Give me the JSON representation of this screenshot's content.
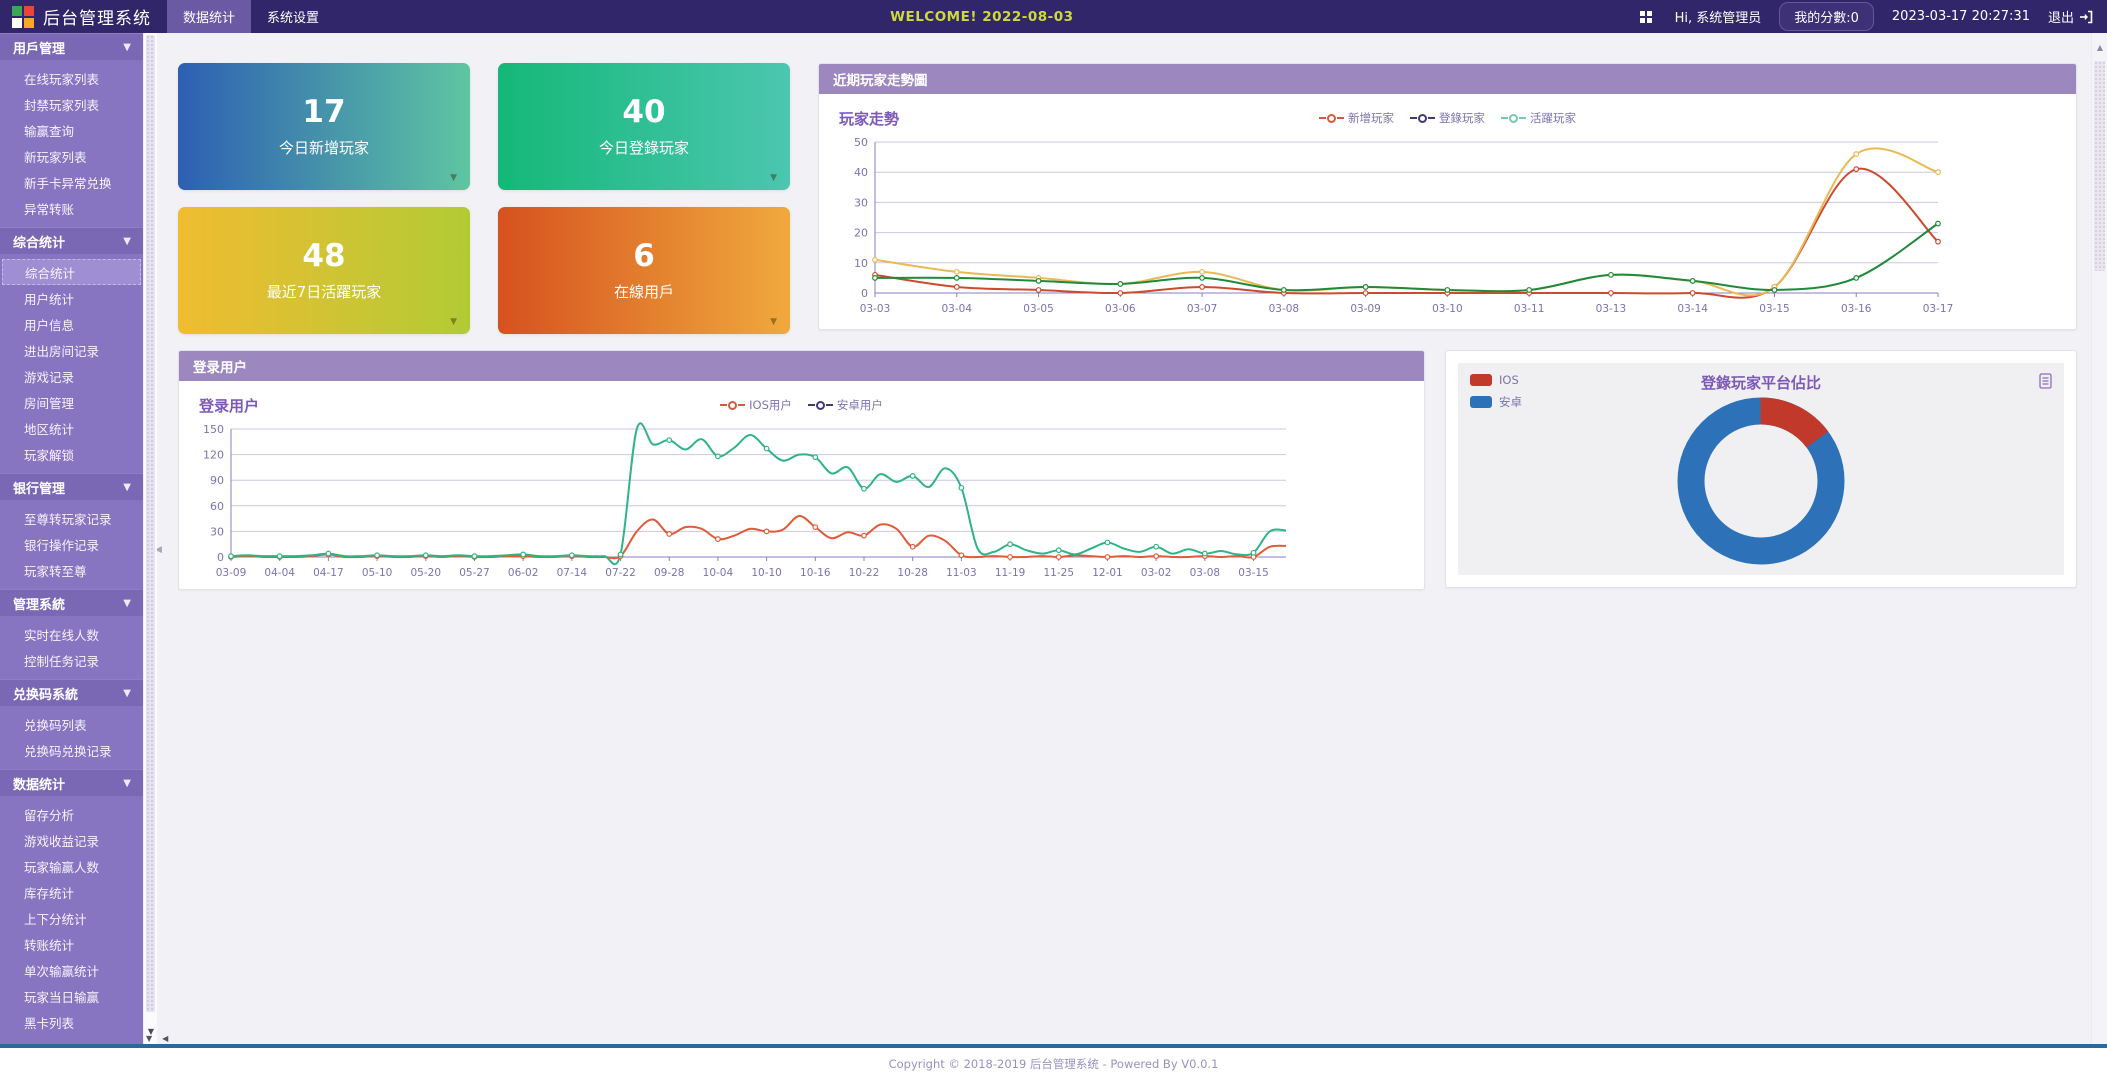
{
  "topbar": {
    "logo_colors": [
      "#3aa757",
      "#e8453c",
      "#ffffff",
      "#f9a825"
    ],
    "title": "后台管理系统",
    "nav": [
      {
        "label": "数据统计",
        "active": true
      },
      {
        "label": "系统设置",
        "active": false
      }
    ],
    "welcome": "WELCOME! 2022-08-03",
    "greeting": "Hi, 系统管理员",
    "score": "我的分數:0",
    "datetime": "2023-03-17 20:27:31",
    "logout": "退出"
  },
  "sidebar": {
    "active_item": "综合统计",
    "sections": [
      {
        "label": "用戶管理",
        "items": [
          "在线玩家列表",
          "封禁玩家列表",
          "输赢查询",
          "新玩家列表",
          "新手卡异常兑换",
          "异常转账"
        ]
      },
      {
        "label": "综合统计",
        "items": [
          "综合统计",
          "用户统计",
          "用户信息",
          "进出房间记录",
          "游戏记录",
          "房间管理",
          "地区统计",
          "玩家解锁"
        ]
      },
      {
        "label": "银行管理",
        "items": [
          "至尊转玩家记录",
          "银行操作记录",
          "玩家转至尊"
        ]
      },
      {
        "label": "管理系統",
        "items": [
          "实时在线人数",
          "控制任务记录"
        ]
      },
      {
        "label": "兑换码系統",
        "items": [
          "兑换码列表",
          "兑换码兑换记录"
        ]
      },
      {
        "label": "数据统计",
        "items": [
          "留存分析",
          "游戏收益记录",
          "玩家输赢人数",
          "库存统计",
          "上下分统计",
          "转账统计",
          "单次输赢统计",
          "玩家当日输赢",
          "黑卡列表"
        ]
      }
    ]
  },
  "cards": [
    {
      "value": "17",
      "label": "今日新增玩家",
      "from": "#2d5fb3",
      "to": "#5ec6a2"
    },
    {
      "value": "40",
      "label": "今日登錄玩家",
      "from": "#14b878",
      "to": "#4cc6b0"
    },
    {
      "value": "48",
      "label": "最近7日活躍玩家",
      "from": "#f0bc30",
      "to": "#b2cb35"
    },
    {
      "value": "6",
      "label": "在線用戶",
      "from": "#d6521f",
      "to": "#f0a93d"
    }
  ],
  "panels": {
    "trend": {
      "header": "近期玩家走勢圖"
    },
    "login": {
      "header": "登录用户"
    }
  },
  "chart_data": [
    {
      "type": "line",
      "title": "玩家走勢",
      "categories": [
        "03-03",
        "03-04",
        "03-05",
        "03-06",
        "03-07",
        "03-08",
        "03-09",
        "03-10",
        "03-11",
        "03-13",
        "03-14",
        "03-15",
        "03-16",
        "03-17"
      ],
      "series": [
        {
          "name": "新增玩家",
          "line_color": "#cc4a2e",
          "values": [
            6,
            2,
            1,
            0,
            2,
            0,
            0,
            0,
            0,
            0,
            0,
            2,
            41,
            17
          ]
        },
        {
          "name": "登錄玩家",
          "line_color": "#e9b954",
          "values": [
            11,
            7,
            5,
            3,
            7,
            1,
            2,
            1,
            1,
            6,
            4,
            2,
            46,
            40
          ]
        },
        {
          "name": "活躍玩家",
          "line_color": "#1f8a3a",
          "values": [
            5,
            5,
            4,
            3,
            5,
            1,
            2,
            1,
            1,
            6,
            4,
            1,
            5,
            23
          ]
        }
      ],
      "legend": [
        {
          "label": "新增玩家",
          "color": "#cf5b41"
        },
        {
          "label": "登錄玩家",
          "color": "#3f3a72"
        },
        {
          "label": "活躍玩家",
          "color": "#79c7ae"
        }
      ],
      "ylim": [
        0,
        50
      ],
      "yticks": [
        0,
        10,
        20,
        30,
        40,
        50
      ],
      "marker_every": 1,
      "label_every": 1
    },
    {
      "type": "line",
      "title": "登录用户",
      "categories": [
        "03-09",
        "04-04",
        "04-17",
        "05-10",
        "05-20",
        "05-27",
        "06-02",
        "07-14",
        "07-22",
        "09-28",
        "10-04",
        "10-10",
        "10-16",
        "10-22",
        "10-28",
        "11-03",
        "11-19",
        "11-25",
        "12-01",
        "03-02",
        "03-08",
        "03-15"
      ],
      "series": [
        {
          "name": "IOS用户",
          "line_color": "#df5b39",
          "values": [
            0,
            1,
            0,
            0,
            0,
            1,
            3,
            0,
            0,
            1,
            0,
            0,
            1,
            0,
            1,
            0,
            0,
            1,
            1,
            0,
            0,
            1,
            0,
            0,
            1,
            30,
            44,
            27,
            35,
            33,
            21,
            25,
            33,
            30,
            32,
            48,
            35,
            22,
            29,
            25,
            38,
            33,
            12,
            25,
            19,
            2,
            0,
            1,
            0,
            0,
            1,
            0,
            2,
            1,
            0,
            1,
            0,
            1,
            0,
            0,
            1,
            0,
            1,
            0,
            12,
            13
          ]
        },
        {
          "name": "安卓用户",
          "line_color": "#2eb487",
          "values": [
            1,
            2,
            1,
            1,
            1,
            2,
            4,
            1,
            1,
            2,
            1,
            1,
            2,
            1,
            2,
            1,
            1,
            2,
            3,
            1,
            1,
            2,
            1,
            1,
            3,
            150,
            132,
            137,
            126,
            138,
            118,
            128,
            143,
            127,
            113,
            120,
            117,
            98,
            105,
            80,
            97,
            88,
            95,
            82,
            104,
            81,
            10,
            6,
            15,
            8,
            4,
            8,
            3,
            10,
            17,
            10,
            6,
            12,
            4,
            9,
            4,
            7,
            3,
            5,
            30,
            31
          ]
        }
      ],
      "legend": [
        {
          "label": "IOS用户",
          "color": "#cf5b41"
        },
        {
          "label": "安卓用户",
          "color": "#3f3a72"
        }
      ],
      "ylim": [
        0,
        150
      ],
      "yticks": [
        0,
        30,
        60,
        90,
        120,
        150
      ],
      "marker_every": 3,
      "label_every": 3
    },
    {
      "type": "donut",
      "title": "登錄玩家平台佔比",
      "slices": [
        {
          "label": "IOS",
          "value": 15,
          "color": "#c0392b"
        },
        {
          "label": "安卓",
          "value": 85,
          "color": "#2d72b8"
        }
      ]
    }
  ],
  "footer": {
    "copyright": "Copyright © 2018-2019 后台管理系统 - Powered By V0.0.1"
  }
}
